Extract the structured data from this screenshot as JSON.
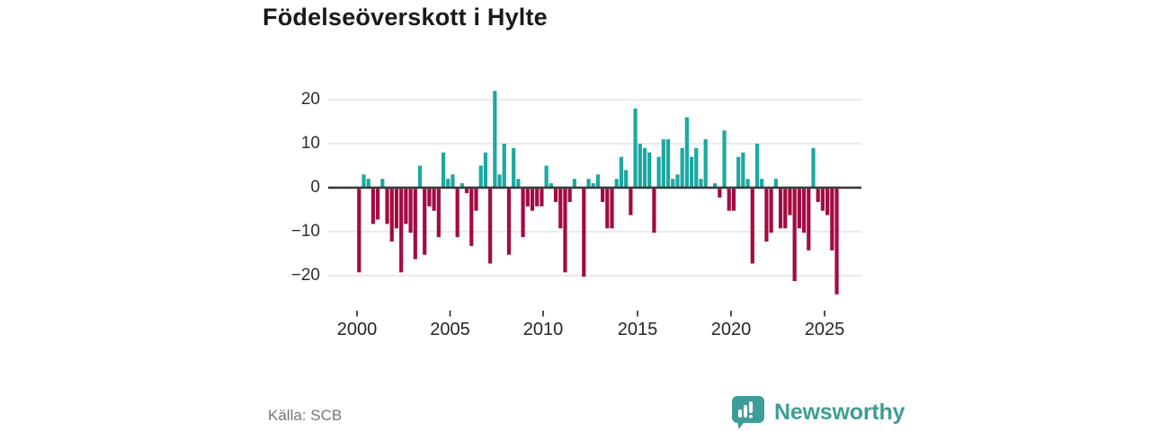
{
  "title": "Födelseöverskott i Hylte",
  "source": "Källa: SCB",
  "brand": {
    "name": "Newsworthy",
    "color": "#3E9D96",
    "icon": "bar-chart-speech-bubble-icon"
  },
  "colors": {
    "positive": "#1BA9A0",
    "negative": "#A30B42",
    "axis": "#3A3A3A",
    "grid": "#E4E4E4",
    "tick": "#262626",
    "background": "#FFFFFF"
  },
  "chart_data": {
    "type": "bar",
    "title": "Födelseöverskott i Hylte",
    "xlabel": "",
    "ylabel": "",
    "unit_period": "quarter",
    "grid": true,
    "ylim": [
      -25,
      23
    ],
    "y_ticks": [
      20,
      10,
      0,
      -10,
      -20
    ],
    "y_tick_labels": [
      "20",
      "10",
      "0",
      "−10",
      "−20"
    ],
    "x_tick_labels": [
      "2000",
      "2005",
      "2010",
      "2015",
      "2020",
      "2025"
    ],
    "years": [
      "2000",
      "2001",
      "2002",
      "2003",
      "2004",
      "2005",
      "2006",
      "2007",
      "2008",
      "2009",
      "2010",
      "2011",
      "2012",
      "2013",
      "2014",
      "2015",
      "2016",
      "2017",
      "2018",
      "2019",
      "2020",
      "2021",
      "2022",
      "2023",
      "2024",
      "2025"
    ],
    "series": [
      {
        "name": "Födelseöverskott per kvartal",
        "values_by_year": {
          "2000": [
            -19,
            3,
            2,
            -8
          ],
          "2001": [
            -7,
            2,
            -8,
            -12
          ],
          "2002": [
            -9,
            -19,
            -8,
            -10
          ],
          "2003": [
            -16,
            5,
            -15,
            -4
          ],
          "2004": [
            -5,
            -11,
            8,
            2
          ],
          "2005": [
            3,
            -11,
            1,
            -1
          ],
          "2006": [
            -13,
            -5,
            5,
            8
          ],
          "2007": [
            -17,
            22,
            3,
            10
          ],
          "2008": [
            -15,
            9,
            2,
            -11
          ],
          "2009": [
            -4,
            -5,
            -4,
            -4
          ],
          "2010": [
            5,
            1,
            -3,
            -9
          ],
          "2011": [
            -19,
            -3,
            2,
            0
          ],
          "2012": [
            -20,
            2,
            1,
            3
          ],
          "2013": [
            -3,
            -9,
            -9,
            2
          ],
          "2014": [
            7,
            4,
            -6,
            18
          ],
          "2015": [
            10,
            9,
            8,
            -10
          ],
          "2016": [
            7,
            11,
            11,
            2
          ],
          "2017": [
            3,
            9,
            16,
            7
          ],
          "2018": [
            9,
            2,
            11,
            0
          ],
          "2019": [
            1,
            -2,
            13,
            -5
          ],
          "2020": [
            -5,
            7,
            8,
            2
          ],
          "2021": [
            -17,
            10,
            2,
            -12
          ],
          "2022": [
            -10,
            2,
            -9,
            -9
          ],
          "2023": [
            -6,
            -21,
            -9,
            -10
          ],
          "2024": [
            -14,
            9,
            -3,
            -5
          ],
          "2025": [
            -6,
            -14,
            -24
          ]
        }
      }
    ]
  }
}
